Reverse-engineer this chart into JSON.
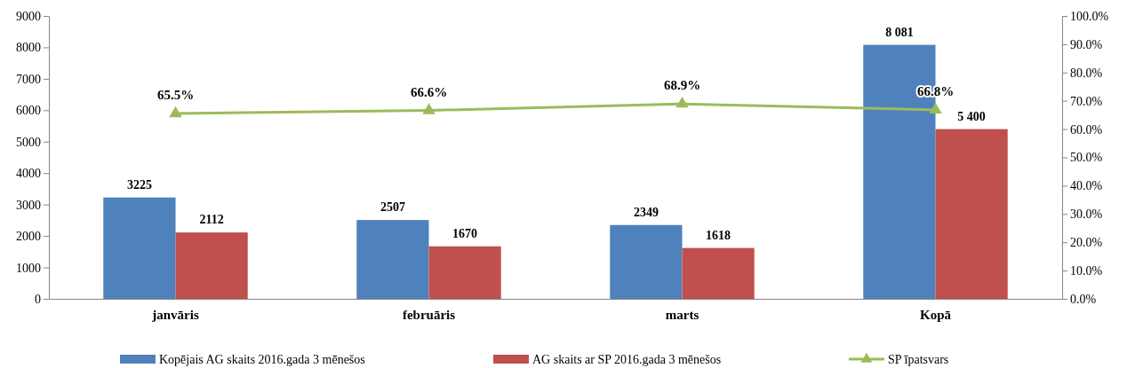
{
  "chart_data": {
    "type": "bar",
    "categories": [
      "janvāris",
      "februāris",
      "marts",
      "Kopā"
    ],
    "series": [
      {
        "name": "Kopējais AG skaits 2016.gada 3 mēnešos",
        "color": "#4f81bd",
        "values": [
          3225,
          2507,
          2349,
          8081
        ],
        "value_labels": [
          "3225",
          "2507",
          "2349",
          "8 081"
        ]
      },
      {
        "name": "AG skaits ar SP 2016.gada 3 mēnešos",
        "color": "#c0504d",
        "values": [
          2112,
          1670,
          1618,
          5400
        ],
        "value_labels": [
          "2112",
          "1670",
          "1618",
          "5 400"
        ]
      },
      {
        "name": "SP  īpatsvars",
        "type": "line",
        "axis": "y2",
        "color": "#9bbb59",
        "marker": "triangle",
        "values": [
          65.5,
          66.6,
          68.9,
          66.8
        ],
        "value_labels": [
          "65.5%",
          "66.6%",
          "68.9%",
          "66.8%"
        ]
      }
    ],
    "ylim": [
      0,
      9000
    ],
    "yticks": [
      0,
      1000,
      2000,
      3000,
      4000,
      5000,
      6000,
      7000,
      8000,
      9000
    ],
    "y2lim": [
      0,
      100
    ],
    "y2ticks": [
      {
        "value": 0,
        "label": "0.0%"
      },
      {
        "value": 10,
        "label": "10.0%"
      },
      {
        "value": 20,
        "label": "20.0%"
      },
      {
        "value": 30,
        "label": "30.0%"
      },
      {
        "value": 40,
        "label": "40.0%"
      },
      {
        "value": 50,
        "label": "50.0%"
      },
      {
        "value": 60,
        "label": "60.0%"
      },
      {
        "value": 70,
        "label": "70.0%"
      },
      {
        "value": 80,
        "label": "80.0%"
      },
      {
        "value": 90,
        "label": "90.0%"
      },
      {
        "value": 100,
        "label": "100.0%"
      }
    ],
    "grid": false,
    "legend": "bottom"
  }
}
